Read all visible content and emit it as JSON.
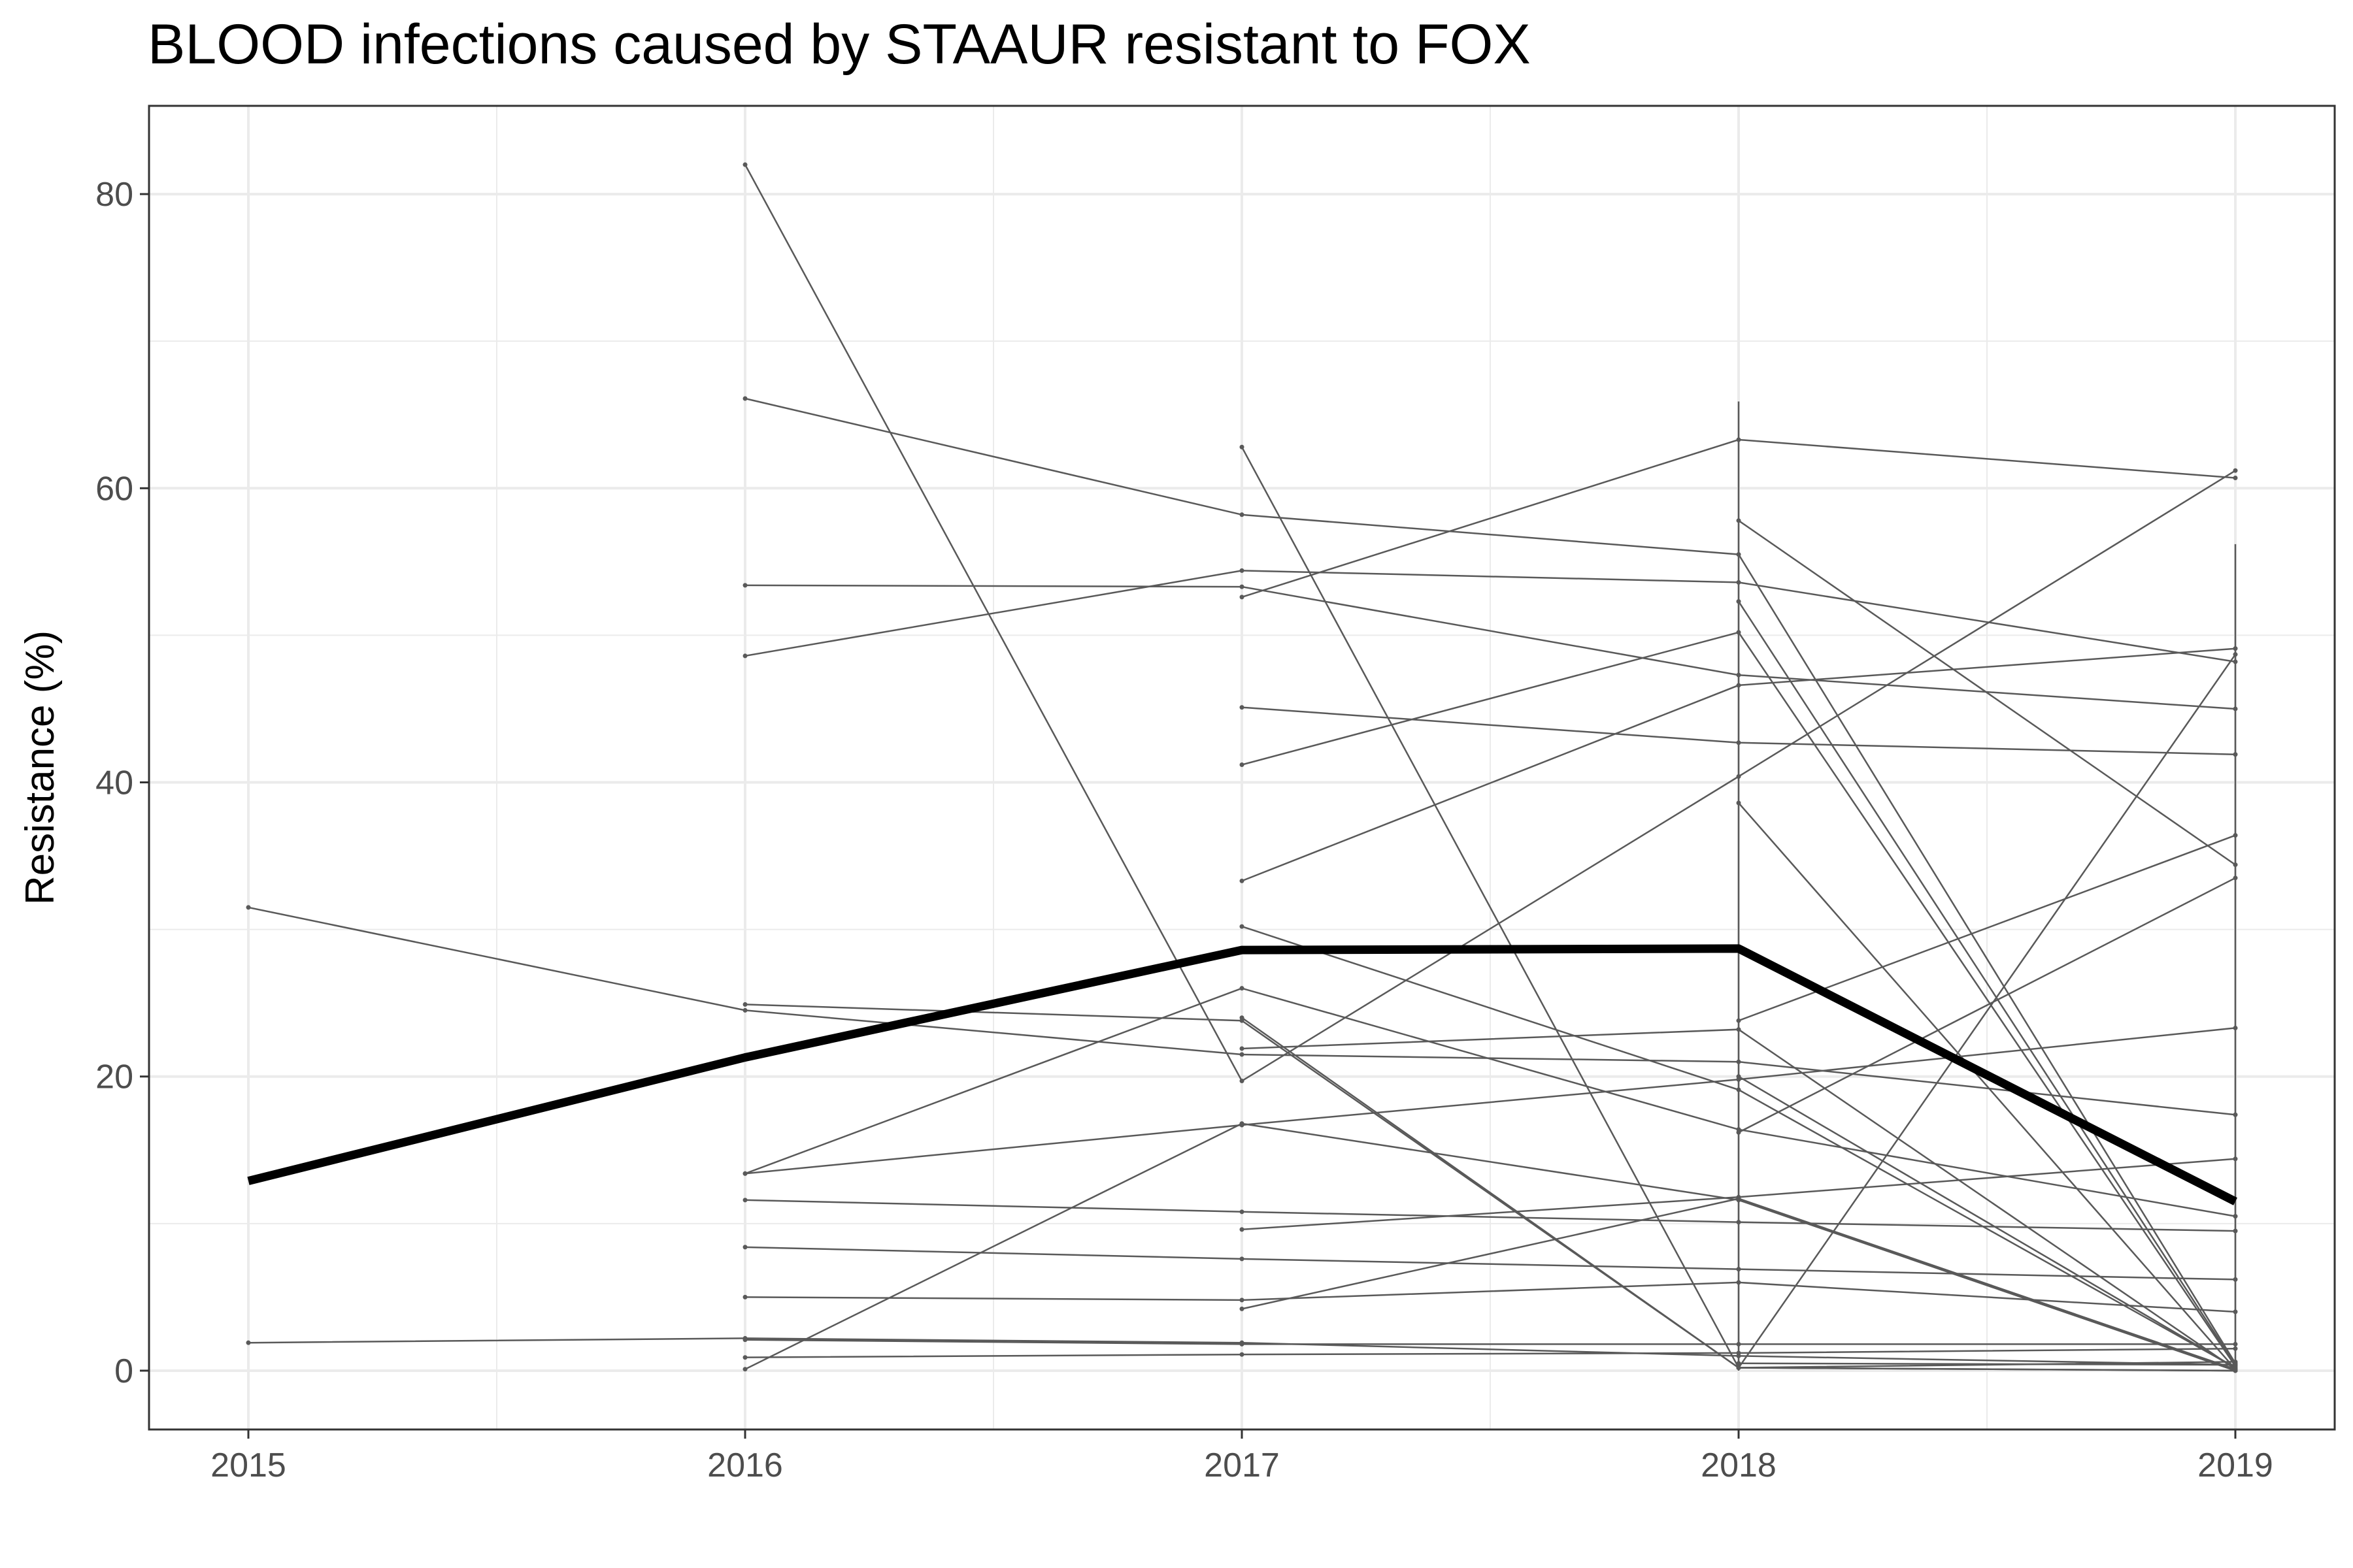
{
  "chart_data": {
    "type": "line",
    "title": "BLOOD infections caused by STAAUR resistant to FOX",
    "xlabel": "",
    "ylabel": "Resistance (%)",
    "x": [
      "2015",
      "2016",
      "2017",
      "2018",
      "2019"
    ],
    "xlim": [
      2014.8,
      2019.2
    ],
    "ylim": [
      -4,
      86
    ],
    "y_ticks": [
      0,
      20,
      40,
      60,
      80
    ],
    "grid": true,
    "legend": "none",
    "colors": {
      "series": "#595959",
      "mean": "#000000",
      "grid": "#ebebeb",
      "panel_border": "#333333"
    },
    "mean_series": {
      "name": "",
      "points": [
        [
          2015,
          12.9
        ],
        [
          2016,
          21.3
        ],
        [
          2017,
          28.6
        ],
        [
          2018,
          28.7
        ],
        [
          2019,
          11.5
        ]
      ]
    },
    "series": [
      {
        "points": [
          [
            2015,
            31.5
          ],
          [
            2016,
            24.5
          ],
          [
            2017,
            21.5
          ],
          [
            2018,
            21.0
          ],
          [
            2019,
            17.4
          ]
        ]
      },
      {
        "points": [
          [
            2015,
            1.9
          ],
          [
            2016,
            2.2
          ],
          [
            2017,
            1.9
          ],
          [
            2018,
            1.0
          ],
          [
            2019,
            0.4
          ]
        ]
      },
      {
        "points": [
          [
            2016,
            82.0
          ],
          [
            2017,
            19.7
          ],
          [
            2018,
            40.4
          ],
          [
            2019,
            61.2
          ]
        ]
      },
      {
        "points": [
          [
            2016,
            66.1
          ],
          [
            2017,
            58.2
          ],
          [
            2018,
            55.5
          ],
          [
            2019,
            0.5
          ]
        ]
      },
      {
        "points": [
          [
            2016,
            53.4
          ],
          [
            2017,
            53.3
          ],
          [
            2018,
            47.3
          ],
          [
            2019,
            45.0
          ]
        ]
      },
      {
        "points": [
          [
            2016,
            48.6
          ],
          [
            2017,
            54.4
          ],
          [
            2018,
            53.6
          ],
          [
            2019,
            48.2
          ]
        ]
      },
      {
        "points": [
          [
            2016,
            24.9
          ],
          [
            2017,
            23.8
          ],
          [
            2018,
            0.2
          ],
          [
            2019,
            0.6
          ]
        ]
      },
      {
        "points": [
          [
            2016,
            13.4
          ],
          [
            2017,
            26.0
          ],
          [
            2018,
            16.4
          ],
          [
            2019,
            10.5
          ]
        ]
      },
      {
        "points": [
          [
            2016,
            13.4
          ],
          [
            2017,
            16.7
          ],
          [
            2018,
            19.8
          ],
          [
            2019,
            23.3
          ]
        ]
      },
      {
        "points": [
          [
            2016,
            11.6
          ],
          [
            2017,
            10.8
          ],
          [
            2018,
            10.1
          ],
          [
            2019,
            9.5
          ]
        ]
      },
      {
        "points": [
          [
            2016,
            8.4
          ],
          [
            2017,
            7.6
          ],
          [
            2018,
            6.9
          ],
          [
            2019,
            6.2
          ]
        ]
      },
      {
        "points": [
          [
            2016,
            5.0
          ],
          [
            2017,
            4.8
          ],
          [
            2018,
            6.0
          ],
          [
            2019,
            4.0
          ]
        ]
      },
      {
        "points": [
          [
            2016,
            2.1
          ],
          [
            2017,
            1.8
          ],
          [
            2018,
            1.8
          ],
          [
            2019,
            1.8
          ]
        ]
      },
      {
        "points": [
          [
            2016,
            0.9
          ],
          [
            2017,
            1.1
          ],
          [
            2018,
            1.2
          ],
          [
            2019,
            1.5
          ]
        ]
      },
      {
        "points": [
          [
            2016,
            0.1
          ],
          [
            2017,
            16.8
          ],
          [
            2018,
            11.6
          ],
          [
            2019,
            0.0
          ]
        ]
      },
      {
        "points": [
          [
            2017,
            62.8
          ],
          [
            2018,
            0.2
          ],
          [
            2019,
            0.0
          ]
        ]
      },
      {
        "points": [
          [
            2017,
            52.6
          ],
          [
            2018,
            63.3
          ],
          [
            2019,
            60.7
          ]
        ]
      },
      {
        "points": [
          [
            2017,
            45.1
          ],
          [
            2018,
            42.7
          ],
          [
            2019,
            41.9
          ]
        ]
      },
      {
        "points": [
          [
            2017,
            41.2
          ],
          [
            2018,
            50.2
          ],
          [
            2019,
            0.3
          ]
        ]
      },
      {
        "points": [
          [
            2017,
            33.3
          ],
          [
            2018,
            46.6
          ],
          [
            2019,
            49.1
          ]
        ]
      },
      {
        "points": [
          [
            2017,
            30.2
          ],
          [
            2018,
            19.1
          ],
          [
            2019,
            0.2
          ]
        ]
      },
      {
        "points": [
          [
            2017,
            21.9
          ],
          [
            2018,
            23.2
          ],
          [
            2019,
            0.1
          ]
        ]
      },
      {
        "points": [
          [
            2017,
            9.6
          ],
          [
            2018,
            11.8
          ],
          [
            2019,
            14.4
          ]
        ]
      },
      {
        "points": [
          [
            2017,
            4.2
          ],
          [
            2018,
            11.7
          ],
          [
            2019,
            0.1
          ]
        ]
      },
      {
        "points": [
          [
            2017,
            24.0
          ],
          [
            2018,
            0.2
          ],
          [
            2019,
            0.0
          ]
        ]
      },
      {
        "points": [
          [
            2018,
            57.8
          ],
          [
            2019,
            34.4
          ]
        ]
      },
      {
        "points": [
          [
            2018,
            52.3
          ],
          [
            2019,
            0.4
          ]
        ]
      },
      {
        "points": [
          [
            2018,
            38.6
          ],
          [
            2019,
            0.1
          ]
        ]
      },
      {
        "points": [
          [
            2018,
            23.8
          ],
          [
            2019,
            36.4
          ]
        ]
      },
      {
        "points": [
          [
            2018,
            20.0
          ],
          [
            2019,
            0.2
          ]
        ]
      },
      {
        "points": [
          [
            2018,
            0.2
          ],
          [
            2019,
            48.7
          ]
        ]
      },
      {
        "points": [
          [
            2018,
            16.2
          ],
          [
            2019,
            33.5
          ]
        ]
      },
      {
        "points": [
          [
            2018,
            0.5
          ],
          [
            2019,
            0.4
          ]
        ]
      }
    ],
    "vertical_spans": [
      {
        "x": 2018,
        "y": [
          0.0,
          65.9
        ]
      },
      {
        "x": 2019,
        "y": [
          0.0,
          56.2
        ]
      }
    ]
  }
}
